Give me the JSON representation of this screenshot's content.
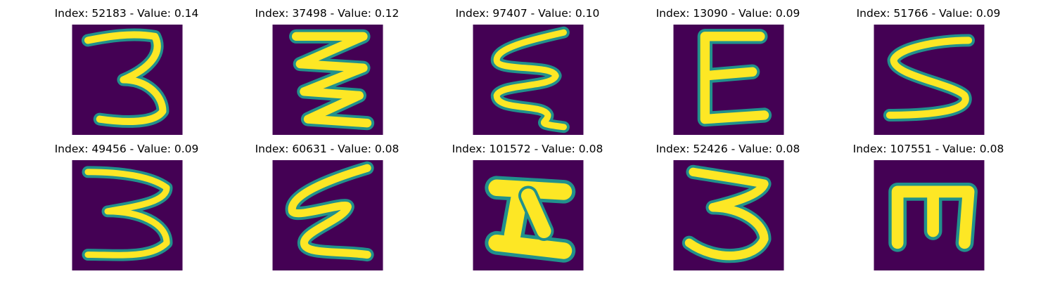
{
  "colors": {
    "background": "#440154",
    "mid": "#21918c",
    "stroke": "#fde725"
  },
  "panels": [
    {
      "title": "Index: 52183 - Value: 0.14",
      "glyph": "3-icon"
    },
    {
      "title": "Index: 37498 - Value: 0.12",
      "glyph": "zigzag-icon"
    },
    {
      "title": "Index: 97407 - Value: 0.10",
      "glyph": "wave-icon"
    },
    {
      "title": "Index: 13090 - Value: 0.09",
      "glyph": "E-icon"
    },
    {
      "title": "Index: 51766 - Value: 0.09",
      "glyph": "S-icon"
    },
    {
      "title": "Index: 49456 - Value: 0.09",
      "glyph": "3-icon"
    },
    {
      "title": "Index: 60631 - Value: 0.08",
      "glyph": "wave-icon"
    },
    {
      "title": "Index: 101572 - Value: 0.08",
      "glyph": "I-beam-icon"
    },
    {
      "title": "Index: 52426 - Value: 0.08",
      "glyph": "3-icon"
    },
    {
      "title": "Index: 107551 - Value: 0.08",
      "glyph": "E-icon"
    }
  ]
}
